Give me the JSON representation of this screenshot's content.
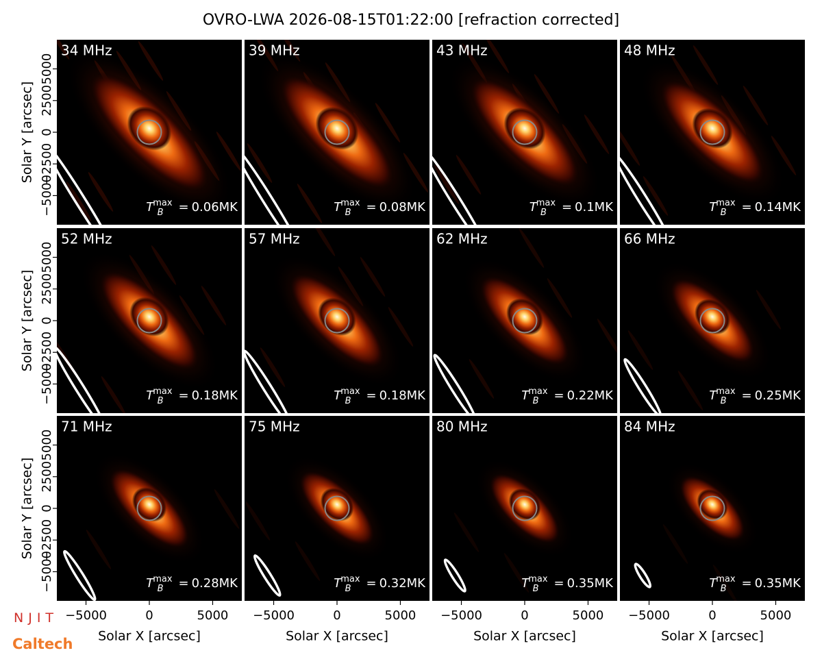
{
  "title": "OVRO-LWA 2026-08-15T01:22:00 [refraction corrected]",
  "chart_data": {
    "type": "heatmap-grid",
    "xlabel": "Solar X [arcsec]",
    "ylabel": "Solar Y [arcsec]",
    "xlim": [
      -7300,
      7300
    ],
    "ylim": [
      -7300,
      7300
    ],
    "xticks": [
      {
        "value": -5000,
        "label": "−5000"
      },
      0,
      5000
    ],
    "yticks": [
      {
        "value": -5000,
        "label": "−5000"
      },
      {
        "value": -2500,
        "label": "−2500"
      },
      0,
      2500,
      5000
    ],
    "tmax_symbol": "T",
    "tmax_sub": "B",
    "tmax_sup": "max",
    "tmax_eq": "=",
    "panels": [
      {
        "label": "34 MHz",
        "tmax_label": "0.06MK"
      },
      {
        "label": "39 MHz",
        "tmax_label": "0.08MK"
      },
      {
        "label": "43 MHz",
        "tmax_label": "0.1MK"
      },
      {
        "label": "48 MHz",
        "tmax_label": "0.14MK"
      },
      {
        "label": "52 MHz",
        "tmax_label": "0.18MK"
      },
      {
        "label": "57 MHz",
        "tmax_label": "0.18MK"
      },
      {
        "label": "62 MHz",
        "tmax_label": "0.22MK"
      },
      {
        "label": "66 MHz",
        "tmax_label": "0.25MK"
      },
      {
        "label": "71 MHz",
        "tmax_label": "0.28MK"
      },
      {
        "label": "75 MHz",
        "tmax_label": "0.32MK"
      },
      {
        "label": "80 MHz",
        "tmax_label": "0.35MK"
      },
      {
        "label": "84 MHz",
        "tmax_label": "0.35MK"
      }
    ]
  },
  "logos": [
    "NJIT",
    "Caltech"
  ]
}
